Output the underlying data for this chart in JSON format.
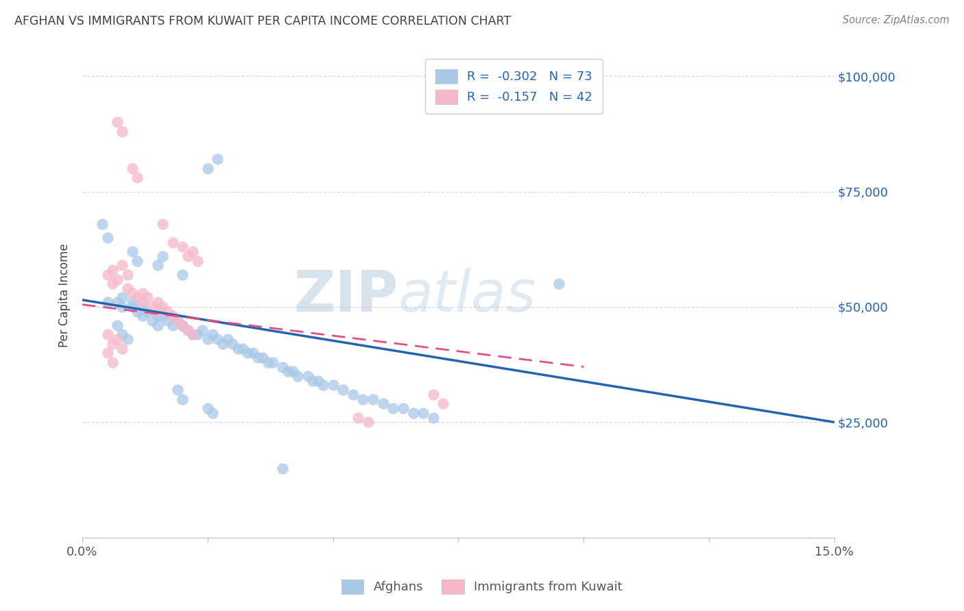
{
  "title": "AFGHAN VS IMMIGRANTS FROM KUWAIT PER CAPITA INCOME CORRELATION CHART",
  "source": "Source: ZipAtlas.com",
  "ylabel": "Per Capita Income",
  "ytick_labels": [
    "$25,000",
    "$50,000",
    "$75,000",
    "$100,000"
  ],
  "ytick_values": [
    25000,
    50000,
    75000,
    100000
  ],
  "watermark_zip": "ZIP",
  "watermark_atlas": "atlas",
  "legend_blue_r": "-0.302",
  "legend_blue_n": "73",
  "legend_pink_r": "-0.157",
  "legend_pink_n": "42",
  "legend_blue_label": "Afghans",
  "legend_pink_label": "Immigrants from Kuwait",
  "blue_color": "#a8c8e8",
  "pink_color": "#f5b8c8",
  "blue_line_color": "#2563b0",
  "pink_line_color": "#e05080",
  "background_color": "#ffffff",
  "grid_color": "#d0d8e8",
  "title_color": "#404040",
  "source_color": "#808080",
  "legend_text_color": "#2563b0",
  "blue_scatter": [
    [
      0.005,
      51000
    ],
    [
      0.007,
      51000
    ],
    [
      0.008,
      52000
    ],
    [
      0.008,
      50000
    ],
    [
      0.01,
      50000
    ],
    [
      0.01,
      51000
    ],
    [
      0.011,
      49000
    ],
    [
      0.012,
      50000
    ],
    [
      0.012,
      48000
    ],
    [
      0.013,
      49000
    ],
    [
      0.014,
      47000
    ],
    [
      0.015,
      48000
    ],
    [
      0.015,
      46000
    ],
    [
      0.016,
      48000
    ],
    [
      0.017,
      47000
    ],
    [
      0.018,
      46000
    ],
    [
      0.019,
      47000
    ],
    [
      0.02,
      46000
    ],
    [
      0.021,
      45000
    ],
    [
      0.022,
      44000
    ],
    [
      0.023,
      44000
    ],
    [
      0.024,
      45000
    ],
    [
      0.025,
      43000
    ],
    [
      0.026,
      44000
    ],
    [
      0.027,
      43000
    ],
    [
      0.028,
      42000
    ],
    [
      0.029,
      43000
    ],
    [
      0.03,
      42000
    ],
    [
      0.031,
      41000
    ],
    [
      0.032,
      41000
    ],
    [
      0.033,
      40000
    ],
    [
      0.034,
      40000
    ],
    [
      0.035,
      39000
    ],
    [
      0.036,
      39000
    ],
    [
      0.037,
      38000
    ],
    [
      0.038,
      38000
    ],
    [
      0.04,
      37000
    ],
    [
      0.041,
      36000
    ],
    [
      0.042,
      36000
    ],
    [
      0.043,
      35000
    ],
    [
      0.045,
      35000
    ],
    [
      0.046,
      34000
    ],
    [
      0.047,
      34000
    ],
    [
      0.048,
      33000
    ],
    [
      0.05,
      33000
    ],
    [
      0.052,
      32000
    ],
    [
      0.054,
      31000
    ],
    [
      0.056,
      30000
    ],
    [
      0.058,
      30000
    ],
    [
      0.06,
      29000
    ],
    [
      0.062,
      28000
    ],
    [
      0.064,
      28000
    ],
    [
      0.066,
      27000
    ],
    [
      0.068,
      27000
    ],
    [
      0.07,
      26000
    ],
    [
      0.025,
      80000
    ],
    [
      0.027,
      82000
    ],
    [
      0.004,
      68000
    ],
    [
      0.005,
      65000
    ],
    [
      0.01,
      62000
    ],
    [
      0.011,
      60000
    ],
    [
      0.015,
      59000
    ],
    [
      0.016,
      61000
    ],
    [
      0.02,
      57000
    ],
    [
      0.007,
      46000
    ],
    [
      0.008,
      44000
    ],
    [
      0.009,
      43000
    ],
    [
      0.019,
      32000
    ],
    [
      0.02,
      30000
    ],
    [
      0.025,
      28000
    ],
    [
      0.026,
      27000
    ],
    [
      0.04,
      15000
    ],
    [
      0.095,
      55000
    ]
  ],
  "pink_scatter": [
    [
      0.007,
      90000
    ],
    [
      0.008,
      88000
    ],
    [
      0.01,
      80000
    ],
    [
      0.011,
      78000
    ],
    [
      0.016,
      68000
    ],
    [
      0.018,
      64000
    ],
    [
      0.02,
      63000
    ],
    [
      0.021,
      61000
    ],
    [
      0.022,
      62000
    ],
    [
      0.023,
      60000
    ],
    [
      0.005,
      57000
    ],
    [
      0.006,
      55000
    ],
    [
      0.006,
      58000
    ],
    [
      0.007,
      56000
    ],
    [
      0.008,
      59000
    ],
    [
      0.009,
      57000
    ],
    [
      0.009,
      54000
    ],
    [
      0.01,
      53000
    ],
    [
      0.011,
      52000
    ],
    [
      0.012,
      51000
    ],
    [
      0.012,
      53000
    ],
    [
      0.013,
      52000
    ],
    [
      0.014,
      50000
    ],
    [
      0.015,
      49000
    ],
    [
      0.015,
      51000
    ],
    [
      0.016,
      50000
    ],
    [
      0.017,
      49000
    ],
    [
      0.018,
      48000
    ],
    [
      0.019,
      47000
    ],
    [
      0.02,
      46000
    ],
    [
      0.021,
      45000
    ],
    [
      0.022,
      44000
    ],
    [
      0.005,
      44000
    ],
    [
      0.006,
      42000
    ],
    [
      0.007,
      43000
    ],
    [
      0.008,
      41000
    ],
    [
      0.005,
      40000
    ],
    [
      0.006,
      38000
    ],
    [
      0.07,
      31000
    ],
    [
      0.072,
      29000
    ],
    [
      0.055,
      26000
    ],
    [
      0.057,
      25000
    ]
  ],
  "blue_line_x": [
    0.0,
    0.15
  ],
  "blue_line_y": [
    51500,
    25000
  ],
  "pink_line_x": [
    0.0,
    0.1
  ],
  "pink_line_y": [
    50500,
    37000
  ],
  "xmin": 0.0,
  "xmax": 0.15,
  "ymin": 0,
  "ymax": 105000
}
